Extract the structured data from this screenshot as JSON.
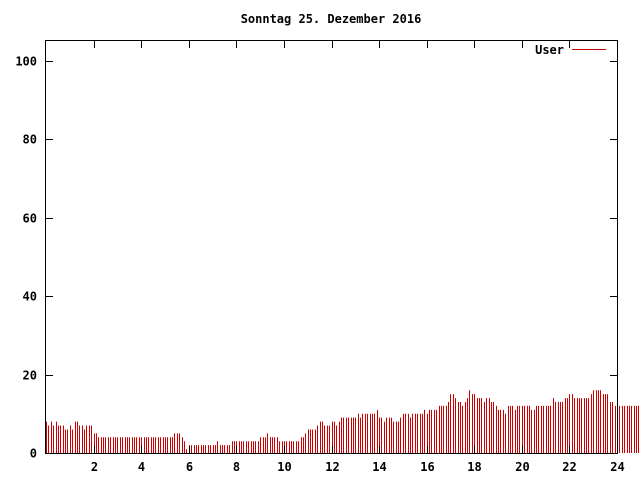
{
  "chart_data": {
    "type": "bar",
    "title": "Sonntag 25. Dezember 2016",
    "xlabel": "",
    "ylabel": "",
    "xlim": [
      0,
      24
    ],
    "ylim": [
      0,
      105
    ],
    "xticks": [
      "2",
      "4",
      "6",
      "8",
      "10",
      "12",
      "14",
      "16",
      "18",
      "20",
      "22",
      "24"
    ],
    "yticks": [
      "0",
      "20",
      "40",
      "60",
      "80",
      "100"
    ],
    "grid": false,
    "legend_position": "top-right",
    "series": [
      {
        "name": "User",
        "color": "#cc0000",
        "x_start": 0,
        "x_step": 0.1,
        "values": [
          8,
          7,
          8,
          7,
          8,
          7,
          7,
          7,
          6,
          6,
          7,
          6,
          8,
          8,
          7,
          7,
          6,
          7,
          7,
          7,
          5,
          5,
          4,
          4,
          4,
          4,
          4,
          4,
          4,
          4,
          4,
          4,
          4,
          4,
          4,
          4,
          4,
          4,
          4,
          4,
          4,
          4,
          4,
          4,
          4,
          4,
          4,
          4,
          4,
          4,
          4,
          4,
          4,
          4,
          5,
          5,
          5,
          4,
          3,
          1,
          2,
          2,
          2,
          2,
          2,
          2,
          2,
          2,
          2,
          2,
          2,
          2,
          3,
          2,
          2,
          2,
          2,
          2,
          3,
          3,
          3,
          3,
          3,
          3,
          3,
          3,
          3,
          3,
          3,
          3,
          4,
          4,
          4,
          5,
          4,
          4,
          4,
          4,
          3,
          3,
          3,
          3,
          3,
          3,
          3,
          3,
          3,
          4,
          4,
          5,
          6,
          6,
          6,
          6,
          7,
          8,
          8,
          7,
          7,
          7,
          8,
          8,
          7,
          8,
          9,
          9,
          9,
          9,
          9,
          9,
          9,
          10,
          9,
          10,
          10,
          10,
          10,
          10,
          10,
          11,
          9,
          9,
          8,
          9,
          9,
          9,
          8,
          8,
          8,
          9,
          10,
          10,
          10,
          9,
          10,
          10,
          10,
          10,
          10,
          11,
          10,
          11,
          11,
          11,
          11,
          12,
          12,
          12,
          12,
          13,
          15,
          15,
          14,
          13,
          13,
          12,
          13,
          14,
          16,
          15,
          15,
          14,
          14,
          14,
          13,
          14,
          14,
          13,
          13,
          12,
          11,
          11,
          11,
          10,
          12,
          12,
          12,
          11,
          12,
          12,
          12,
          12,
          12,
          12,
          11,
          11,
          12,
          12,
          12,
          12,
          12,
          12,
          12,
          14,
          13,
          13,
          13,
          13,
          14,
          14,
          15,
          15,
          14,
          14,
          14,
          14,
          14,
          14,
          14,
          15,
          16,
          16,
          16,
          16,
          15,
          15,
          15,
          13,
          13,
          12,
          12,
          12,
          12,
          12,
          12,
          12,
          12,
          12,
          12,
          12
        ]
      }
    ]
  }
}
